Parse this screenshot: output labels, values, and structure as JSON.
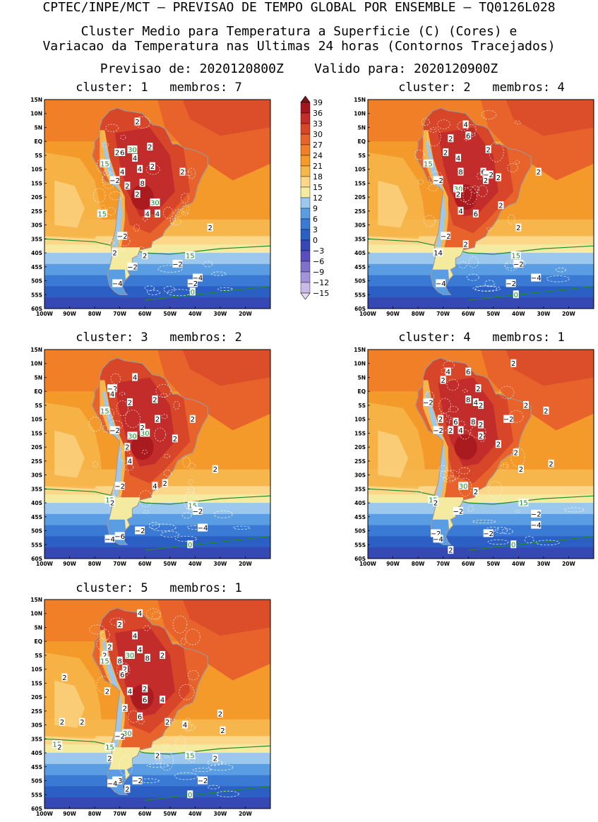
{
  "header": {
    "line1": "CPTEC/INPE/MCT – PREVISAO DE TEMPO GLOBAL POR ENSEMBLE – TQ0126L028",
    "line2": "Cluster Medio para Temperatura a Superficie (C) (Cores) e",
    "line3": "Variacao da Temperatura nas Ultimas 24 horas (Contornos Tracejados)",
    "line4": "Previsao de: 2020120800Z    Valido para: 2020120900Z"
  },
  "axes": {
    "lat_labels": [
      "15N",
      "10N",
      "5N",
      "EQ",
      "5S",
      "10S",
      "15S",
      "20S",
      "25S",
      "30S",
      "35S",
      "40S",
      "45S",
      "50S",
      "55S",
      "60S"
    ],
    "lon_labels": [
      "100W",
      "90W",
      "80W",
      "70W",
      "60W",
      "50W",
      "40W",
      "30W",
      "20W"
    ],
    "lat_range": [
      -60,
      15
    ],
    "lon_range": [
      -100,
      -10
    ]
  },
  "colorbar": {
    "levels": [
      "39",
      "36",
      "33",
      "30",
      "27",
      "24",
      "21",
      "18",
      "15",
      "12",
      "9",
      "6",
      "3",
      "0",
      "−3",
      "−6",
      "−9",
      "−12",
      "−15"
    ],
    "colors": [
      "#7a1418",
      "#a3171c",
      "#c22d2c",
      "#d8462a",
      "#e8632b",
      "#f07f27",
      "#f39a2b",
      "#f7b64b",
      "#fcd78a",
      "#f4eaa0",
      "#9cc8ee",
      "#5b9de3",
      "#3a79d4",
      "#2b5fc4",
      "#3548b4",
      "#5a4dbd",
      "#7f70cc",
      "#a493da",
      "#c8b9e8",
      "#e4dcf3"
    ]
  },
  "panels": [
    {
      "title": "cluster: 1   membros: 7",
      "labels": [
        {
          "t": "2",
          "lon": -63,
          "lat": 7,
          "c": "k"
        },
        {
          "t": "30",
          "lon": -65,
          "lat": -3,
          "c": "g"
        },
        {
          "t": "2",
          "lon": -58,
          "lat": -2,
          "c": "k"
        },
        {
          "t": "2",
          "lon": -71,
          "lat": -4,
          "c": "k"
        },
        {
          "t": "6",
          "lon": -69,
          "lat": -4,
          "c": "k"
        },
        {
          "t": "4",
          "lon": -64,
          "lat": -6,
          "c": "k"
        },
        {
          "t": "15",
          "lon": -76,
          "lat": -8,
          "c": "g"
        },
        {
          "t": "4",
          "lon": -69,
          "lat": -11,
          "c": "k"
        },
        {
          "t": "4",
          "lon": -62,
          "lat": -10,
          "c": "k"
        },
        {
          "t": "2",
          "lon": -57,
          "lat": -9,
          "c": "k"
        },
        {
          "t": "2",
          "lon": -45,
          "lat": -11,
          "c": "k"
        },
        {
          "t": "−2",
          "lon": -72,
          "lat": -14,
          "c": "k"
        },
        {
          "t": "2",
          "lon": -67,
          "lat": -16,
          "c": "k"
        },
        {
          "t": "8",
          "lon": -61,
          "lat": -15,
          "c": "k"
        },
        {
          "t": "2",
          "lon": -63,
          "lat": -19,
          "c": "k"
        },
        {
          "t": "30",
          "lon": -56,
          "lat": -22,
          "c": "g"
        },
        {
          "t": "4",
          "lon": -59,
          "lat": -26,
          "c": "k"
        },
        {
          "t": "4",
          "lon": -55,
          "lat": -26,
          "c": "k"
        },
        {
          "t": "15",
          "lon": -77,
          "lat": -26,
          "c": "g"
        },
        {
          "t": "2",
          "lon": -34,
          "lat": -31,
          "c": "k"
        },
        {
          "t": "−2",
          "lon": -69,
          "lat": -34,
          "c": "k"
        },
        {
          "t": "2",
          "lon": -72,
          "lat": -40,
          "c": "k"
        },
        {
          "t": "2",
          "lon": -60,
          "lat": -41,
          "c": "k"
        },
        {
          "t": "15",
          "lon": -42,
          "lat": -41,
          "c": "g"
        },
        {
          "t": "−2",
          "lon": -47,
          "lat": -44,
          "c": "k"
        },
        {
          "t": "−2",
          "lon": -65,
          "lat": -45,
          "c": "k"
        },
        {
          "t": "−4",
          "lon": -39,
          "lat": -49,
          "c": "k"
        },
        {
          "t": "−2",
          "lon": -41,
          "lat": -51,
          "c": "k"
        },
        {
          "t": "−4",
          "lon": -71,
          "lat": -51,
          "c": "k"
        },
        {
          "t": "0",
          "lon": -41,
          "lat": -54,
          "c": "g"
        }
      ]
    },
    {
      "title": "cluster: 2   membros: 4",
      "labels": [
        {
          "t": "4",
          "lon": -61,
          "lat": 6,
          "c": "k"
        },
        {
          "t": "2",
          "lon": -67,
          "lat": 1,
          "c": "k"
        },
        {
          "t": "6",
          "lon": -60,
          "lat": 2,
          "c": "k"
        },
        {
          "t": "2",
          "lon": -69,
          "lat": -4,
          "c": "k"
        },
        {
          "t": "4",
          "lon": -64,
          "lat": -6,
          "c": "k"
        },
        {
          "t": "2",
          "lon": -52,
          "lat": -3,
          "c": "k"
        },
        {
          "t": "15",
          "lon": -76,
          "lat": -8,
          "c": "g"
        },
        {
          "t": "8",
          "lon": -63,
          "lat": -11,
          "c": "k"
        },
        {
          "t": "6",
          "lon": -54,
          "lat": -11,
          "c": "k"
        },
        {
          "t": "−2",
          "lon": -52,
          "lat": -12,
          "c": "k"
        },
        {
          "t": "2",
          "lon": -53,
          "lat": -14,
          "c": "k"
        },
        {
          "t": "2",
          "lon": -48,
          "lat": -13,
          "c": "k"
        },
        {
          "t": "2",
          "lon": -32,
          "lat": -11,
          "c": "k"
        },
        {
          "t": "−2",
          "lon": -72,
          "lat": -14,
          "c": "k"
        },
        {
          "t": "30",
          "lon": -64,
          "lat": -17,
          "c": "g"
        },
        {
          "t": "2",
          "lon": -64,
          "lat": -19,
          "c": "k"
        },
        {
          "t": "4",
          "lon": -63,
          "lat": -25,
          "c": "k"
        },
        {
          "t": "6",
          "lon": -57,
          "lat": -26,
          "c": "k"
        },
        {
          "t": "2",
          "lon": -47,
          "lat": -23,
          "c": "k"
        },
        {
          "t": "2",
          "lon": -40,
          "lat": -31,
          "c": "k"
        },
        {
          "t": "−2",
          "lon": -69,
          "lat": -34,
          "c": "k"
        },
        {
          "t": "2",
          "lon": -61,
          "lat": -37,
          "c": "k"
        },
        {
          "t": "14",
          "lon": -72,
          "lat": -40,
          "c": "k"
        },
        {
          "t": "15",
          "lon": -41,
          "lat": -41,
          "c": "g"
        },
        {
          "t": "−2",
          "lon": -40,
          "lat": -44,
          "c": "k"
        },
        {
          "t": "−4",
          "lon": -33,
          "lat": -49,
          "c": "k"
        },
        {
          "t": "−2",
          "lon": -43,
          "lat": -51,
          "c": "k"
        },
        {
          "t": "−4",
          "lon": -71,
          "lat": -51,
          "c": "k"
        },
        {
          "t": "0",
          "lon": -41,
          "lat": -55,
          "c": "g"
        }
      ]
    },
    {
      "title": "cluster: 3   membros: 2",
      "labels": [
        {
          "t": "4",
          "lon": -64,
          "lat": 5,
          "c": "k"
        },
        {
          "t": "−2",
          "lon": -73,
          "lat": 1,
          "c": "k"
        },
        {
          "t": "4",
          "lon": -73,
          "lat": -1,
          "c": "k"
        },
        {
          "t": "2",
          "lon": -66,
          "lat": -4,
          "c": "k"
        },
        {
          "t": "2",
          "lon": -56,
          "lat": -3,
          "c": "k"
        },
        {
          "t": "15",
          "lon": -76,
          "lat": -7,
          "c": "g"
        },
        {
          "t": "2",
          "lon": -55,
          "lat": -10,
          "c": "k"
        },
        {
          "t": "2",
          "lon": -41,
          "lat": -10,
          "c": "k"
        },
        {
          "t": "−2",
          "lon": -72,
          "lat": -14,
          "c": "k"
        },
        {
          "t": "30",
          "lon": -65,
          "lat": -16,
          "c": "g"
        },
        {
          "t": "30",
          "lon": -60,
          "lat": -15,
          "c": "g"
        },
        {
          "t": "2",
          "lon": -61,
          "lat": -13,
          "c": "k"
        },
        {
          "t": "2",
          "lon": -48,
          "lat": -17,
          "c": "k"
        },
        {
          "t": "2",
          "lon": -67,
          "lat": -20,
          "c": "k"
        },
        {
          "t": "4",
          "lon": -66,
          "lat": -25,
          "c": "k"
        },
        {
          "t": "2",
          "lon": -32,
          "lat": -28,
          "c": "k"
        },
        {
          "t": "−2",
          "lon": -70,
          "lat": -34,
          "c": "k"
        },
        {
          "t": "4",
          "lon": -56,
          "lat": -34,
          "c": "k"
        },
        {
          "t": "2",
          "lon": -52,
          "lat": -33,
          "c": "k"
        },
        {
          "t": "15",
          "lon": -74,
          "lat": -39,
          "c": "g"
        },
        {
          "t": "2",
          "lon": -73,
          "lat": -40,
          "c": "k"
        },
        {
          "t": "15",
          "lon": -41,
          "lat": -41,
          "c": "g"
        },
        {
          "t": "−2",
          "lon": -39,
          "lat": -43,
          "c": "k"
        },
        {
          "t": "−4",
          "lon": -37,
          "lat": -49,
          "c": "k"
        },
        {
          "t": "−2",
          "lon": -62,
          "lat": -50,
          "c": "k"
        },
        {
          "t": "−4",
          "lon": -74,
          "lat": -53,
          "c": "k"
        },
        {
          "t": "−6",
          "lon": -70,
          "lat": -52,
          "c": "k"
        },
        {
          "t": "0",
          "lon": -42,
          "lat": -55,
          "c": "g"
        }
      ]
    },
    {
      "title": "cluster: 4   membros: 1",
      "labels": [
        {
          "t": "2",
          "lon": -42,
          "lat": 10,
          "c": "k"
        },
        {
          "t": "4",
          "lon": -68,
          "lat": 7,
          "c": "k"
        },
        {
          "t": "6",
          "lon": -60,
          "lat": 7,
          "c": "k"
        },
        {
          "t": "2",
          "lon": -70,
          "lat": 4,
          "c": "k"
        },
        {
          "t": "2",
          "lon": -56,
          "lat": 1,
          "c": "k"
        },
        {
          "t": "4",
          "lon": -60,
          "lat": -3,
          "c": "k"
        },
        {
          "t": "4",
          "lon": -57,
          "lat": -4,
          "c": "k"
        },
        {
          "t": "8",
          "lon": -60,
          "lat": -3,
          "c": "k"
        },
        {
          "t": "2",
          "lon": -55,
          "lat": -5,
          "c": "k"
        },
        {
          "t": "−2",
          "lon": -76,
          "lat": -4,
          "c": "k"
        },
        {
          "t": "2",
          "lon": -29,
          "lat": -7,
          "c": "k"
        },
        {
          "t": "2",
          "lon": -37,
          "lat": -5,
          "c": "k"
        },
        {
          "t": "2",
          "lon": -71,
          "lat": -10,
          "c": "k"
        },
        {
          "t": "6",
          "lon": -65,
          "lat": -11,
          "c": "k"
        },
        {
          "t": "8",
          "lon": -58,
          "lat": -11,
          "c": "k"
        },
        {
          "t": "2",
          "lon": -55,
          "lat": -12,
          "c": "k"
        },
        {
          "t": "−2",
          "lon": -44,
          "lat": -10,
          "c": "k"
        },
        {
          "t": "−2",
          "lon": -72,
          "lat": -14,
          "c": "k"
        },
        {
          "t": "2",
          "lon": -67,
          "lat": -14,
          "c": "k"
        },
        {
          "t": "4",
          "lon": -63,
          "lat": -14,
          "c": "k"
        },
        {
          "t": "2",
          "lon": -55,
          "lat": -16,
          "c": "k"
        },
        {
          "t": "2",
          "lon": -48,
          "lat": -19,
          "c": "k"
        },
        {
          "t": "2",
          "lon": -41,
          "lat": -22,
          "c": "k"
        },
        {
          "t": "2",
          "lon": -27,
          "lat": -26,
          "c": "k"
        },
        {
          "t": "2",
          "lon": -39,
          "lat": -28,
          "c": "k"
        },
        {
          "t": "30",
          "lon": -62,
          "lat": -34,
          "c": "g"
        },
        {
          "t": "2",
          "lon": -57,
          "lat": -36,
          "c": "k"
        },
        {
          "t": "15",
          "lon": -74,
          "lat": -39,
          "c": "g"
        },
        {
          "t": "2",
          "lon": -73,
          "lat": -40,
          "c": "k"
        },
        {
          "t": "15",
          "lon": -38,
          "lat": -40,
          "c": "g"
        },
        {
          "t": "−2",
          "lon": -64,
          "lat": -43,
          "c": "k"
        },
        {
          "t": "−2",
          "lon": -33,
          "lat": -44,
          "c": "k"
        },
        {
          "t": "−4",
          "lon": -33,
          "lat": -48,
          "c": "k"
        },
        {
          "t": "−2",
          "lon": -73,
          "lat": -51,
          "c": "k"
        },
        {
          "t": "−4",
          "lon": -72,
          "lat": -53,
          "c": "k"
        },
        {
          "t": "−2",
          "lon": -52,
          "lat": -51,
          "c": "k"
        },
        {
          "t": "0",
          "lon": -42,
          "lat": -55,
          "c": "g"
        },
        {
          "t": "2",
          "lon": -67,
          "lat": -57,
          "c": "k"
        }
      ]
    },
    {
      "title": "cluster: 5   membros: 1",
      "labels": [
        {
          "t": "4",
          "lon": -62,
          "lat": 10,
          "c": "k"
        },
        {
          "t": "2",
          "lon": -70,
          "lat": 6,
          "c": "k"
        },
        {
          "t": "4",
          "lon": -64,
          "lat": 2,
          "c": "k"
        },
        {
          "t": "4",
          "lon": -62,
          "lat": -3,
          "c": "k"
        },
        {
          "t": "2",
          "lon": -74,
          "lat": -2,
          "c": "k"
        },
        {
          "t": "2",
          "lon": -76,
          "lat": -5,
          "c": "k"
        },
        {
          "t": "15",
          "lon": -76,
          "lat": -7,
          "c": "g"
        },
        {
          "t": "30",
          "lon": -66,
          "lat": -5,
          "c": "g"
        },
        {
          "t": "8",
          "lon": -70,
          "lat": -7,
          "c": "k"
        },
        {
          "t": "8",
          "lon": -59,
          "lat": -6,
          "c": "k"
        },
        {
          "t": "2",
          "lon": -53,
          "lat": -5,
          "c": "k"
        },
        {
          "t": "2",
          "lon": -68,
          "lat": -10,
          "c": "k"
        },
        {
          "t": "6",
          "lon": -69,
          "lat": -12,
          "c": "k"
        },
        {
          "t": "2",
          "lon": -92,
          "lat": -13,
          "c": "k"
        },
        {
          "t": "2",
          "lon": -75,
          "lat": -18,
          "c": "k"
        },
        {
          "t": "4",
          "lon": -66,
          "lat": -18,
          "c": "k"
        },
        {
          "t": "2",
          "lon": -60,
          "lat": -17,
          "c": "k"
        },
        {
          "t": "6",
          "lon": -60,
          "lat": -21,
          "c": "k"
        },
        {
          "t": "4",
          "lon": -53,
          "lat": -21,
          "c": "k"
        },
        {
          "t": "2",
          "lon": -68,
          "lat": -24,
          "c": "k"
        },
        {
          "t": "2",
          "lon": -30,
          "lat": -26,
          "c": "k"
        },
        {
          "t": "6",
          "lon": -62,
          "lat": -27,
          "c": "k"
        },
        {
          "t": "2",
          "lon": -93,
          "lat": -29,
          "c": "k"
        },
        {
          "t": "2",
          "lon": -85,
          "lat": -29,
          "c": "k"
        },
        {
          "t": "2",
          "lon": -51,
          "lat": -29,
          "c": "k"
        },
        {
          "t": "4",
          "lon": -44,
          "lat": -30,
          "c": "k"
        },
        {
          "t": "2",
          "lon": -29,
          "lat": -32,
          "c": "k"
        },
        {
          "t": "30",
          "lon": -67,
          "lat": -33,
          "c": "g"
        },
        {
          "t": "−2",
          "lon": -70,
          "lat": -34,
          "c": "k"
        },
        {
          "t": "15",
          "lon": -95,
          "lat": -37,
          "c": "g"
        },
        {
          "t": "2",
          "lon": -94,
          "lat": -38,
          "c": "k"
        },
        {
          "t": "15",
          "lon": -74,
          "lat": -38,
          "c": "g"
        },
        {
          "t": "2",
          "lon": -74,
          "lat": -42,
          "c": "k"
        },
        {
          "t": "2",
          "lon": -55,
          "lat": -41,
          "c": "k"
        },
        {
          "t": "15",
          "lon": -42,
          "lat": -41,
          "c": "g"
        },
        {
          "t": "2",
          "lon": -32,
          "lat": -42,
          "c": "k"
        },
        {
          "t": "−3",
          "lon": -71,
          "lat": -50,
          "c": "k"
        },
        {
          "t": "−4",
          "lon": -73,
          "lat": -51,
          "c": "k"
        },
        {
          "t": "−2",
          "lon": -63,
          "lat": -50,
          "c": "k"
        },
        {
          "t": "2",
          "lon": -67,
          "lat": -53,
          "c": "k"
        },
        {
          "t": "−2",
          "lon": -37,
          "lat": -50,
          "c": "k"
        },
        {
          "t": "0",
          "lon": -42,
          "lat": -55,
          "c": "g"
        }
      ]
    }
  ]
}
